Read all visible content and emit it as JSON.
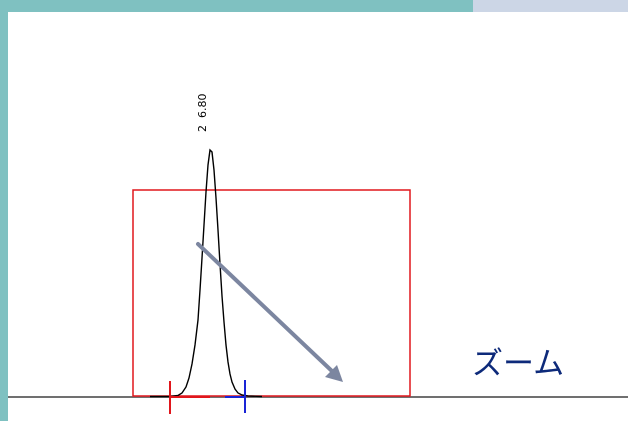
{
  "peak": {
    "number": "2",
    "retention_time": "6.80"
  },
  "zoom_label": "ズーム",
  "colors": {
    "frame_teal": "#7fc1c1",
    "frame_gray": "#ccd6e6",
    "baseline": "#707070",
    "peak_trace": "#000000",
    "zoom_rect": "#e0161c",
    "arrow": "#7c86a0",
    "start_marker": "#e0161c",
    "end_marker": "#1a25d6",
    "zoom_text": "#0d2a7a"
  }
}
